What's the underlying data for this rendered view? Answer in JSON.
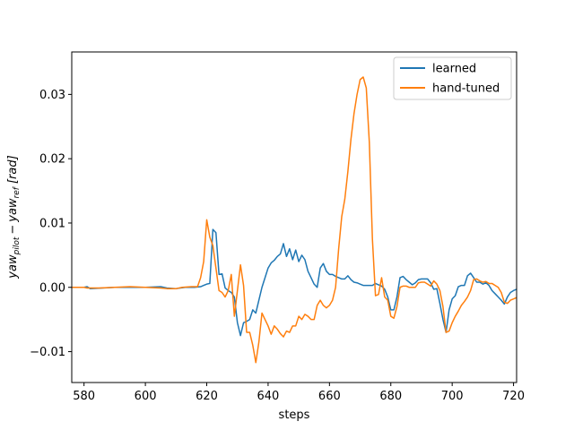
{
  "chart_data": {
    "type": "line",
    "xlabel": "steps",
    "ylabel": {
      "base1": "yaw",
      "sub1": "pilot",
      "op": "−",
      "base2": "yaw",
      "sub2": "ref",
      "unit": "[rad]"
    },
    "xlim": [
      576,
      721
    ],
    "ylim": [
      -0.0148,
      0.0366
    ],
    "xticks": [
      580,
      600,
      620,
      640,
      660,
      680,
      700,
      720
    ],
    "xtick_labels": [
      "580",
      "600",
      "620",
      "640",
      "660",
      "680",
      "700",
      "720"
    ],
    "yticks": [
      -0.01,
      0.0,
      0.01,
      0.02,
      0.03
    ],
    "ytick_labels": [
      "−0.01",
      "0.00",
      "0.01",
      "0.02",
      "0.03"
    ],
    "grid": false,
    "legend_position": "top-right",
    "series": [
      {
        "name": "learned",
        "color": "#1f77b4",
        "points": [
          [
            576,
            0
          ],
          [
            580,
            0
          ],
          [
            581,
            0.0001
          ],
          [
            582,
            -0.0002
          ],
          [
            586,
            -0.0001
          ],
          [
            590,
            0
          ],
          [
            595,
            0
          ],
          [
            600,
            0
          ],
          [
            605,
            0.0001
          ],
          [
            607,
            -0.0001
          ],
          [
            610,
            -0.0002
          ],
          [
            613,
            0
          ],
          [
            616,
            0
          ],
          [
            618,
            0.0001
          ],
          [
            619,
            0.0003
          ],
          [
            620,
            0.0005
          ],
          [
            621,
            0.0006
          ],
          [
            622,
            0.009
          ],
          [
            623,
            0.0085
          ],
          [
            624,
            0.002
          ],
          [
            625,
            0.0021
          ],
          [
            626,
            -0.0001
          ],
          [
            627,
            -0.0005
          ],
          [
            628,
            -0.0008
          ],
          [
            629,
            -0.0015
          ],
          [
            630,
            -0.0055
          ],
          [
            631,
            -0.0075
          ],
          [
            632,
            -0.0055
          ],
          [
            633,
            -0.0053
          ],
          [
            634,
            -0.005
          ],
          [
            635,
            -0.0035
          ],
          [
            636,
            -0.004
          ],
          [
            637,
            -0.002
          ],
          [
            638,
            0
          ],
          [
            639,
            0.0015
          ],
          [
            640,
            0.003
          ],
          [
            641,
            0.0038
          ],
          [
            642,
            0.0042
          ],
          [
            643,
            0.0048
          ],
          [
            644,
            0.0052
          ],
          [
            645,
            0.0068
          ],
          [
            646,
            0.0048
          ],
          [
            647,
            0.006
          ],
          [
            648,
            0.0043
          ],
          [
            649,
            0.0058
          ],
          [
            650,
            0.004
          ],
          [
            651,
            0.005
          ],
          [
            652,
            0.0043
          ],
          [
            653,
            0.0025
          ],
          [
            654,
            0.0015
          ],
          [
            655,
            0.0005
          ],
          [
            656,
            0
          ],
          [
            657,
            0.003
          ],
          [
            658,
            0.0037
          ],
          [
            659,
            0.0025
          ],
          [
            660,
            0.002
          ],
          [
            661,
            0.002
          ],
          [
            662,
            0.0017
          ],
          [
            663,
            0.0015
          ],
          [
            664,
            0.0013
          ],
          [
            665,
            0.0013
          ],
          [
            666,
            0.0018
          ],
          [
            667,
            0.0012
          ],
          [
            668,
            0.0008
          ],
          [
            669,
            0.0007
          ],
          [
            670,
            0.0005
          ],
          [
            671,
            0.0003
          ],
          [
            672,
            0.0003
          ],
          [
            673,
            0.0003
          ],
          [
            674,
            0.0003
          ],
          [
            675,
            0.0006
          ],
          [
            676,
            0.0004
          ],
          [
            677,
            0.0002
          ],
          [
            678,
            -0.0003
          ],
          [
            679,
            -0.0015
          ],
          [
            680,
            -0.0035
          ],
          [
            681,
            -0.0035
          ],
          [
            682,
            -0.0015
          ],
          [
            683,
            0.0015
          ],
          [
            684,
            0.0017
          ],
          [
            685,
            0.0012
          ],
          [
            686,
            0.0008
          ],
          [
            687,
            0.0004
          ],
          [
            688,
            0.0007
          ],
          [
            689,
            0.0012
          ],
          [
            690,
            0.0013
          ],
          [
            691,
            0.0013
          ],
          [
            692,
            0.0013
          ],
          [
            693,
            0.0007
          ],
          [
            694,
            -0.0003
          ],
          [
            695,
            -0.0002
          ],
          [
            696,
            -0.0025
          ],
          [
            697,
            -0.005
          ],
          [
            698,
            -0.007
          ],
          [
            699,
            -0.0035
          ],
          [
            700,
            -0.0018
          ],
          [
            701,
            -0.0013
          ],
          [
            702,
            0.0001
          ],
          [
            703,
            0.0003
          ],
          [
            704,
            0.0003
          ],
          [
            705,
            0.0018
          ],
          [
            706,
            0.0022
          ],
          [
            707,
            0.0015
          ],
          [
            708,
            0.0008
          ],
          [
            709,
            0.0008
          ],
          [
            710,
            0.0005
          ],
          [
            711,
            0.0007
          ],
          [
            712,
            0.0003
          ],
          [
            713,
            -0.0005
          ],
          [
            714,
            -0.001
          ],
          [
            715,
            -0.0015
          ],
          [
            716,
            -0.002
          ],
          [
            717,
            -0.0026
          ],
          [
            718,
            -0.0015
          ],
          [
            719,
            -0.0008
          ],
          [
            720,
            -0.0005
          ],
          [
            721,
            -0.0003
          ]
        ]
      },
      {
        "name": "hand-tuned",
        "color": "#ff7f0e",
        "points": [
          [
            576,
            0
          ],
          [
            580,
            0
          ],
          [
            581,
            -0.0001
          ],
          [
            585,
            -0.0001
          ],
          [
            590,
            0
          ],
          [
            595,
            0.0001
          ],
          [
            600,
            0
          ],
          [
            605,
            -0.0001
          ],
          [
            607,
            -0.0002
          ],
          [
            610,
            -0.0002
          ],
          [
            612,
            0
          ],
          [
            615,
            0.0001
          ],
          [
            617,
            0.0001
          ],
          [
            618,
            0.0015
          ],
          [
            619,
            0.004
          ],
          [
            620,
            0.0105
          ],
          [
            621,
            0.0078
          ],
          [
            622,
            0.0065
          ],
          [
            623,
            0.003
          ],
          [
            624,
            -0.0005
          ],
          [
            625,
            -0.0008
          ],
          [
            626,
            -0.0015
          ],
          [
            627,
            -0.0005
          ],
          [
            628,
            0.002
          ],
          [
            629,
            -0.0045
          ],
          [
            630,
            -0.0005
          ],
          [
            631,
            0.0035
          ],
          [
            632,
            0.0003
          ],
          [
            633,
            -0.007
          ],
          [
            634,
            -0.007
          ],
          [
            635,
            -0.009
          ],
          [
            636,
            -0.0117
          ],
          [
            637,
            -0.0085
          ],
          [
            638,
            -0.004
          ],
          [
            639,
            -0.005
          ],
          [
            640,
            -0.006
          ],
          [
            641,
            -0.0073
          ],
          [
            642,
            -0.006
          ],
          [
            643,
            -0.0065
          ],
          [
            644,
            -0.0072
          ],
          [
            645,
            -0.0077
          ],
          [
            646,
            -0.0068
          ],
          [
            647,
            -0.007
          ],
          [
            648,
            -0.006
          ],
          [
            649,
            -0.006
          ],
          [
            650,
            -0.0045
          ],
          [
            651,
            -0.005
          ],
          [
            652,
            -0.0042
          ],
          [
            653,
            -0.0045
          ],
          [
            654,
            -0.005
          ],
          [
            655,
            -0.005
          ],
          [
            656,
            -0.0028
          ],
          [
            657,
            -0.002
          ],
          [
            658,
            -0.0028
          ],
          [
            659,
            -0.0032
          ],
          [
            660,
            -0.0028
          ],
          [
            661,
            -0.002
          ],
          [
            662,
            0
          ],
          [
            663,
            0.006
          ],
          [
            664,
            0.011
          ],
          [
            665,
            0.0137
          ],
          [
            666,
            0.018
          ],
          [
            667,
            0.023
          ],
          [
            668,
            0.027
          ],
          [
            669,
            0.03
          ],
          [
            670,
            0.0323
          ],
          [
            671,
            0.0327
          ],
          [
            672,
            0.031
          ],
          [
            673,
            0.0225
          ],
          [
            674,
            0.0075
          ],
          [
            675,
            -0.0013
          ],
          [
            676,
            -0.0011
          ],
          [
            677,
            0.0015
          ],
          [
            678,
            -0.0015
          ],
          [
            679,
            -0.002
          ],
          [
            680,
            -0.0045
          ],
          [
            681,
            -0.0048
          ],
          [
            682,
            -0.003
          ],
          [
            683,
            0
          ],
          [
            684,
            0.0002
          ],
          [
            685,
            0.0002
          ],
          [
            686,
            0
          ],
          [
            687,
            0
          ],
          [
            688,
            0
          ],
          [
            689,
            0.0007
          ],
          [
            690,
            0.0008
          ],
          [
            691,
            0.0008
          ],
          [
            692,
            0.0005
          ],
          [
            693,
            0.0002
          ],
          [
            694,
            0.001
          ],
          [
            695,
            0.0005
          ],
          [
            696,
            -0.0005
          ],
          [
            697,
            -0.003
          ],
          [
            698,
            -0.007
          ],
          [
            699,
            -0.0068
          ],
          [
            700,
            -0.0055
          ],
          [
            701,
            -0.0045
          ],
          [
            702,
            -0.0037
          ],
          [
            703,
            -0.0028
          ],
          [
            704,
            -0.0022
          ],
          [
            705,
            -0.0015
          ],
          [
            706,
            -0.0005
          ],
          [
            707,
            0.0012
          ],
          [
            708,
            0.0013
          ],
          [
            709,
            0.001
          ],
          [
            710,
            0.0008
          ],
          [
            711,
            0.0009
          ],
          [
            712,
            0.0006
          ],
          [
            713,
            0.0006
          ],
          [
            714,
            0.0003
          ],
          [
            715,
            0
          ],
          [
            716,
            -0.0008
          ],
          [
            717,
            -0.0023
          ],
          [
            718,
            -0.0025
          ],
          [
            719,
            -0.002
          ],
          [
            720,
            -0.0018
          ],
          [
            721,
            -0.0016
          ]
        ]
      }
    ]
  }
}
